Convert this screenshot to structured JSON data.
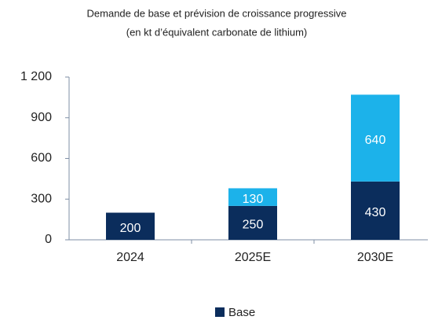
{
  "chart_data": {
    "type": "stacked_bar",
    "title": "Demande de base et prévision de croissance progressive",
    "subtitle": "(en kt d’équivalent carbonate de lithium)",
    "categories": [
      "2024",
      "2025E",
      "2030E"
    ],
    "series": [
      {
        "name": "Base",
        "color": "#0b2d5c",
        "values": [
          200,
          250,
          430
        ]
      },
      {
        "color": "#1cb2ea",
        "values": [
          null,
          130,
          640
        ]
      }
    ],
    "ylim": [
      0,
      1200
    ],
    "yticks": [
      0,
      300,
      600,
      900,
      {
        "value": 1200,
        "label": "1 200"
      }
    ],
    "grid": false,
    "legend": "bottom"
  }
}
